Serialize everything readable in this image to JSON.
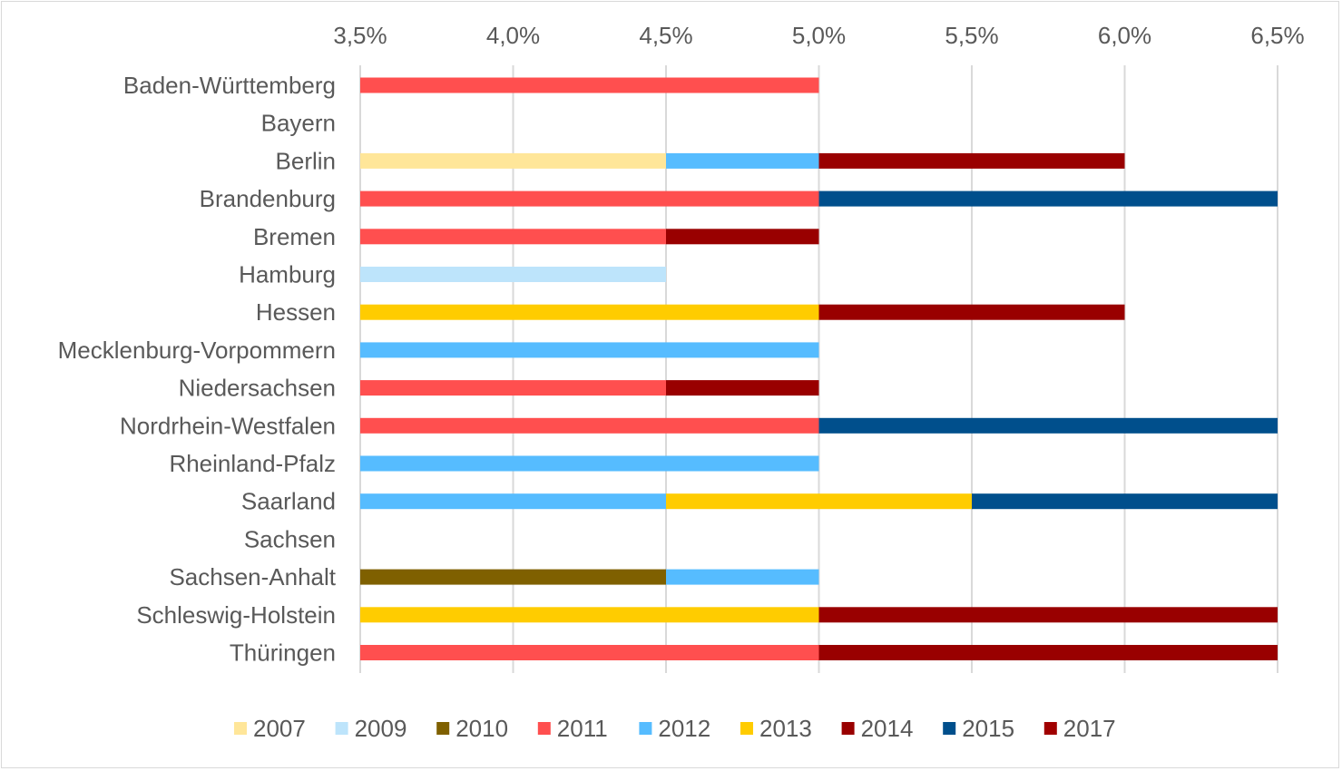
{
  "chart_data": {
    "type": "bar",
    "orientation": "horizontal",
    "stacked": true,
    "title": "",
    "xlabel": "",
    "ylabel": "",
    "xlim": [
      0.035,
      0.065
    ],
    "x_axis_position": "top",
    "x_ticks": [
      "3,5%",
      "4,0%",
      "4,5%",
      "5,0%",
      "5,5%",
      "6,0%",
      "6,5%"
    ],
    "grid": "vertical",
    "legend_position": "bottom",
    "categories": [
      "Baden-Württemberg",
      "Bayern",
      "Berlin",
      "Brandenburg",
      "Bremen",
      "Hamburg",
      "Hessen",
      "Mecklenburg-Vorpommern",
      "Niedersachsen",
      "Nordrhein-Westfalen",
      "Rheinland-Pfalz",
      "Saarland",
      "Sachsen",
      "Sachsen-Anhalt",
      "Schleswig-Holstein",
      "Thüringen"
    ],
    "series": [
      {
        "name": "2007",
        "color": "#ffe699",
        "values": [
          null,
          null,
          [
            0.035,
            0.045
          ],
          null,
          null,
          null,
          null,
          null,
          null,
          null,
          null,
          null,
          null,
          null,
          null,
          null
        ]
      },
      {
        "name": "2009",
        "color": "#bde4fb",
        "values": [
          null,
          null,
          null,
          null,
          null,
          [
            0.035,
            0.045
          ],
          null,
          null,
          null,
          null,
          null,
          null,
          null,
          null,
          null,
          null
        ]
      },
      {
        "name": "2010",
        "color": "#7f6000",
        "values": [
          null,
          null,
          null,
          null,
          null,
          null,
          null,
          null,
          null,
          null,
          null,
          null,
          null,
          [
            0.035,
            0.045
          ],
          null,
          null
        ]
      },
      {
        "name": "2011",
        "color": "#ff4f4f",
        "values": [
          [
            0.035,
            0.05
          ],
          null,
          null,
          [
            0.035,
            0.05
          ],
          [
            0.035,
            0.045
          ],
          null,
          null,
          null,
          [
            0.035,
            0.045
          ],
          [
            0.035,
            0.05
          ],
          null,
          null,
          null,
          null,
          null,
          [
            0.035,
            0.05
          ]
        ]
      },
      {
        "name": "2012",
        "color": "#56bcff",
        "values": [
          null,
          null,
          [
            0.045,
            0.05
          ],
          null,
          null,
          null,
          null,
          [
            0.035,
            0.05
          ],
          null,
          null,
          [
            0.035,
            0.05
          ],
          [
            0.035,
            0.045
          ],
          null,
          [
            0.045,
            0.05
          ],
          null,
          null
        ]
      },
      {
        "name": "2013",
        "color": "#ffcc00",
        "values": [
          null,
          null,
          null,
          null,
          null,
          null,
          [
            0.035,
            0.05
          ],
          null,
          null,
          null,
          null,
          [
            0.045,
            0.055
          ],
          null,
          null,
          [
            0.035,
            0.05
          ],
          null
        ]
      },
      {
        "name": "2014",
        "color": "#990000",
        "values": [
          null,
          null,
          [
            0.05,
            0.06
          ],
          null,
          [
            0.045,
            0.05
          ],
          null,
          [
            0.05,
            0.06
          ],
          null,
          [
            0.045,
            0.05
          ],
          null,
          null,
          null,
          null,
          null,
          [
            0.05,
            0.065
          ],
          [
            0.05,
            0.065
          ]
        ]
      },
      {
        "name": "2015",
        "color": "#004f8c",
        "values": [
          null,
          null,
          null,
          [
            0.05,
            0.065
          ],
          null,
          null,
          null,
          null,
          null,
          [
            0.05,
            0.065
          ],
          null,
          [
            0.055,
            0.065
          ],
          null,
          null,
          null,
          null
        ]
      },
      {
        "name": "2017",
        "color": "#a00000",
        "values": [
          null,
          null,
          null,
          null,
          null,
          null,
          null,
          null,
          null,
          null,
          null,
          null,
          null,
          null,
          null,
          null
        ]
      }
    ]
  }
}
